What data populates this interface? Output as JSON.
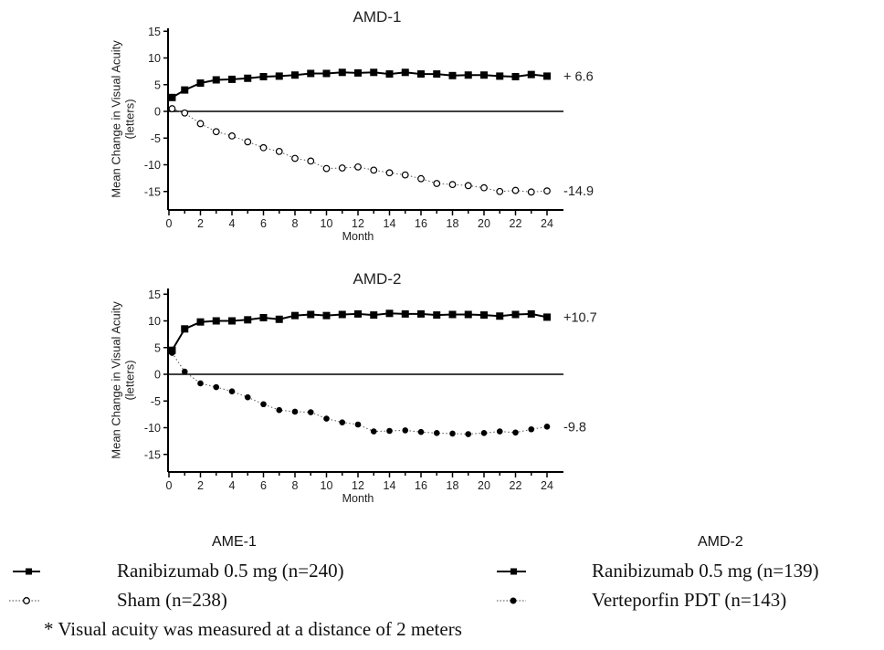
{
  "chart_data": [
    {
      "type": "line",
      "title": "AMD-1",
      "xlabel": "Month",
      "ylabel": "Mean Change in Visual Acuity (letters)",
      "xlim": [
        0,
        24.5
      ],
      "ylim": [
        -17.5,
        15.5
      ],
      "x_ticks": [
        0,
        2,
        4,
        6,
        8,
        10,
        12,
        14,
        16,
        18,
        20,
        22,
        24
      ],
      "y_ticks": [
        15,
        10,
        5,
        0,
        -5,
        -10,
        -15
      ],
      "zero_line": true,
      "grid": false,
      "x": [
        0,
        1,
        2,
        3,
        4,
        5,
        6,
        7,
        8,
        9,
        10,
        11,
        12,
        13,
        14,
        15,
        16,
        17,
        18,
        19,
        20,
        21,
        22,
        23,
        24
      ],
      "series": [
        {
          "name": "Ranibizumab 0.5 mg (n=240)",
          "marker": "filled-square",
          "line": "solid",
          "start": [
            0.2,
            2.6
          ],
          "values": [
            null,
            4.0,
            5.3,
            5.9,
            6.0,
            6.2,
            6.5,
            6.6,
            6.8,
            7.1,
            7.1,
            7.3,
            7.2,
            7.3,
            7.0,
            7.3,
            7.0,
            7.0,
            6.7,
            6.8,
            6.8,
            6.6,
            6.5,
            6.9,
            6.6
          ],
          "end_label": "+ 6.6"
        },
        {
          "name": "Sham (n=238)",
          "marker": "open-circle",
          "line": "dotted",
          "start": [
            0.2,
            0.5
          ],
          "values": [
            null,
            -0.3,
            -2.3,
            -3.8,
            -4.6,
            -5.7,
            -6.8,
            -7.5,
            -8.8,
            -9.3,
            -10.7,
            -10.6,
            -10.4,
            -11.0,
            -11.5,
            -11.9,
            -12.6,
            -13.5,
            -13.7,
            -13.9,
            -14.3,
            -15.0,
            -14.8,
            -15.1,
            -14.9
          ],
          "end_label": "-14.9"
        }
      ]
    },
    {
      "type": "line",
      "title": "AMD-2",
      "xlabel": "Month",
      "ylabel": "Mean Change in Visual Acuity (letters)",
      "xlim": [
        0,
        24.5
      ],
      "ylim": [
        -17.5,
        15.5
      ],
      "x_ticks": [
        0,
        2,
        4,
        6,
        8,
        10,
        12,
        14,
        16,
        18,
        20,
        22,
        24
      ],
      "y_ticks": [
        15,
        10,
        5,
        0,
        -5,
        -10,
        -15
      ],
      "zero_line": true,
      "grid": false,
      "x": [
        0,
        1,
        2,
        3,
        4,
        5,
        6,
        7,
        8,
        9,
        10,
        11,
        12,
        13,
        14,
        15,
        16,
        17,
        18,
        19,
        20,
        21,
        22,
        23,
        24
      ],
      "series": [
        {
          "name": "Ranibizumab 0.5 mg (n=139)",
          "marker": "filled-square",
          "line": "solid",
          "start": [
            0.2,
            4.5
          ],
          "values": [
            null,
            8.5,
            9.8,
            10.0,
            10.0,
            10.2,
            10.6,
            10.3,
            11.0,
            11.2,
            11.0,
            11.2,
            11.3,
            11.1,
            11.4,
            11.3,
            11.3,
            11.1,
            11.2,
            11.2,
            11.1,
            10.9,
            11.2,
            11.3,
            10.7
          ],
          "end_label": "+10.7"
        },
        {
          "name": "Verteporfin PDT (n=143)",
          "marker": "filled-circle",
          "line": "dotted",
          "start": [
            0.2,
            4.0
          ],
          "values": [
            null,
            0.5,
            -1.7,
            -2.4,
            -3.2,
            -4.3,
            -5.6,
            -6.7,
            -7.0,
            -7.1,
            -8.3,
            -9.0,
            -9.4,
            -10.7,
            -10.6,
            -10.5,
            -10.8,
            -11.0,
            -11.1,
            -11.2,
            -11.0,
            -10.7,
            -10.9,
            -10.3,
            -9.8
          ],
          "end_label": "-9.8"
        }
      ]
    }
  ],
  "legend": {
    "left": {
      "heading": "AME-1",
      "items": [
        {
          "label": "Ranibizumab 0.5 mg (n=240)",
          "symbol": "solid-line-filled-square"
        },
        {
          "label": "Sham (n=238)",
          "symbol": "dotted-line-open-circle"
        }
      ]
    },
    "right": {
      "heading": "AMD-2",
      "items": [
        {
          "label": "Ranibizumab 0.5 mg (n=139)",
          "symbol": "solid-line-filled-square"
        },
        {
          "label": "Verteporfin PDT (n=143)",
          "symbol": "dotted-line-filled-circle"
        }
      ]
    }
  },
  "footnote": "* Visual acuity was measured at a distance of 2 meters"
}
